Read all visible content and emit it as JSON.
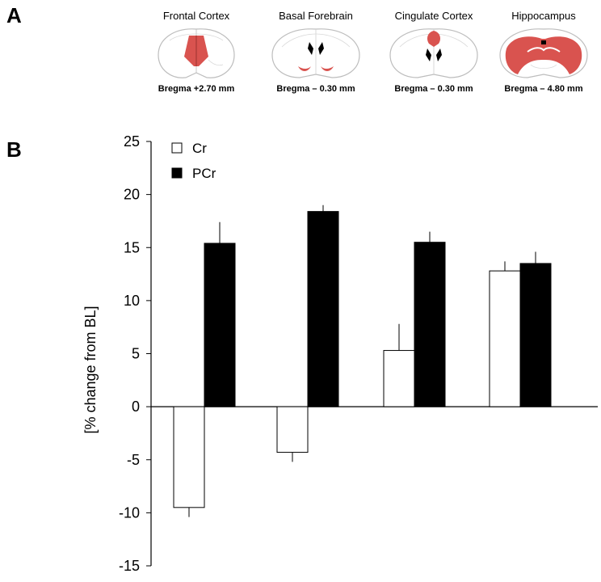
{
  "panels": {
    "a": "A",
    "b": "B"
  },
  "regions": [
    {
      "title": "Frontal Cortex",
      "bregma": "Bregma +2.70 mm",
      "shape": "frontal-cortex-section"
    },
    {
      "title": "Basal Forebrain",
      "bregma": "Bregma – 0.30 mm",
      "shape": "basal-forebrain-section"
    },
    {
      "title": "Cingulate Cortex",
      "bregma": "Bregma – 0.30 mm",
      "shape": "cingulate-cortex-section"
    },
    {
      "title": "Hippocampus",
      "bregma": "Bregma – 4.80 mm",
      "shape": "hippocampus-section"
    }
  ],
  "colors": {
    "highlight": "#d9534f",
    "outline": "#bdbdbd",
    "bar_pcr": "#000000",
    "bar_cr": "#ffffff"
  },
  "chart_data": {
    "type": "bar",
    "title": "",
    "xlabel": "",
    "ylabel": "[% change from BL]",
    "ylim": [
      -15,
      25
    ],
    "yticks": [
      25,
      20,
      15,
      10,
      5,
      0,
      -5,
      -10,
      -15
    ],
    "grid": false,
    "legend_position": "top-left",
    "categories": [
      "",
      "",
      "",
      ""
    ],
    "series": [
      {
        "name": "Cr",
        "color": "#ffffff",
        "values": [
          -9.5,
          -4.3,
          5.3,
          12.8
        ],
        "errors": [
          0.9,
          0.9,
          2.5,
          0.9
        ]
      },
      {
        "name": "PCr",
        "color": "#000000",
        "values": [
          15.4,
          18.4,
          15.5,
          13.5
        ],
        "errors": [
          2.0,
          0.6,
          1.0,
          1.1
        ]
      }
    ]
  }
}
